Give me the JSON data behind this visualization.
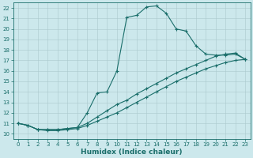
{
  "xlabel": "Humidex (Indice chaleur)",
  "xlim": [
    -0.5,
    23.5
  ],
  "ylim": [
    9.5,
    22.5
  ],
  "xticks": [
    0,
    1,
    2,
    3,
    4,
    5,
    6,
    7,
    8,
    9,
    10,
    11,
    12,
    13,
    14,
    15,
    16,
    17,
    18,
    19,
    20,
    21,
    22,
    23
  ],
  "yticks": [
    10,
    11,
    12,
    13,
    14,
    15,
    16,
    17,
    18,
    19,
    20,
    21,
    22
  ],
  "bg_color": "#cce8ec",
  "grid_color": "#aac8cc",
  "line_color": "#1a6e6a",
  "line1_x": [
    0,
    1,
    2,
    3,
    4,
    5,
    6,
    7,
    8,
    9,
    10,
    11,
    12,
    13,
    14,
    15,
    16,
    17,
    18,
    19,
    20,
    21,
    22,
    23
  ],
  "line1_y": [
    11.0,
    10.8,
    10.4,
    10.4,
    10.4,
    10.5,
    10.6,
    12.0,
    13.9,
    14.0,
    16.0,
    21.1,
    21.3,
    22.1,
    22.2,
    21.5,
    20.0,
    19.8,
    18.4,
    17.6,
    17.5,
    17.5,
    17.6,
    17.1
  ],
  "line2_x": [
    0,
    1,
    2,
    3,
    4,
    5,
    6,
    7,
    8,
    9,
    10,
    11,
    12,
    13,
    14,
    15,
    16,
    17,
    18,
    19,
    20,
    21,
    22,
    23
  ],
  "line2_y": [
    11.0,
    10.8,
    10.4,
    10.4,
    10.4,
    10.5,
    10.6,
    11.0,
    11.6,
    12.2,
    12.8,
    13.2,
    13.8,
    14.3,
    14.8,
    15.3,
    15.8,
    16.2,
    16.6,
    17.0,
    17.4,
    17.6,
    17.7,
    17.1
  ],
  "line3_x": [
    0,
    1,
    2,
    3,
    4,
    5,
    6,
    7,
    8,
    9,
    10,
    11,
    12,
    13,
    14,
    15,
    16,
    17,
    18,
    19,
    20,
    21,
    22,
    23
  ],
  "line3_y": [
    11.0,
    10.8,
    10.4,
    10.3,
    10.3,
    10.4,
    10.5,
    10.8,
    11.2,
    11.6,
    12.0,
    12.5,
    13.0,
    13.5,
    14.0,
    14.5,
    15.0,
    15.4,
    15.8,
    16.2,
    16.5,
    16.8,
    17.0,
    17.1
  ],
  "marker": "+",
  "markersize": 2.5,
  "linewidth": 0.8,
  "tick_fontsize": 5.0,
  "xlabel_fontsize": 6.5
}
